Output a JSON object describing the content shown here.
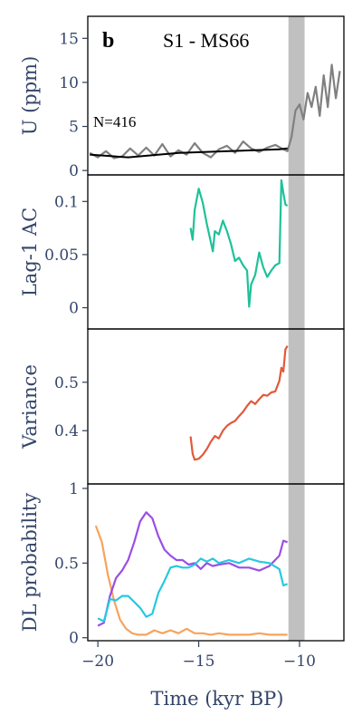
{
  "figure": {
    "panel_letter": "b",
    "title": "S1 - MS66",
    "n_label": "N=416",
    "xlabel": "Time (kyr BP)",
    "xlim": [
      -20.5,
      -7.8
    ],
    "xticks": [
      -20,
      -15,
      -10
    ],
    "xtick_labels": [
      "−20",
      "−15",
      "−10"
    ],
    "shaded_band": {
      "x0": -10.55,
      "x1": -9.75,
      "color": "#c0c0c0"
    }
  },
  "chart_data": [
    {
      "type": "line",
      "panel": "U",
      "ylabel": "U (ppm)",
      "ylim": [
        -0.5,
        17.5
      ],
      "yticks": [
        0,
        5,
        10,
        15
      ],
      "ytick_labels": [
        "0",
        "5",
        "10",
        "15"
      ],
      "series": [
        {
          "role": "data",
          "color": "#808080",
          "x": [
            -20.4,
            -20.0,
            -19.6,
            -19.2,
            -18.8,
            -18.4,
            -18.0,
            -17.6,
            -17.2,
            -16.8,
            -16.4,
            -16.0,
            -15.6,
            -15.2,
            -14.8,
            -14.4,
            -14.0,
            -13.6,
            -13.2,
            -12.8,
            -12.4,
            -12.0,
            -11.6,
            -11.2,
            -10.8,
            -10.6,
            -10.4,
            -10.2,
            -10.0,
            -9.8,
            -9.6,
            -9.4,
            -9.2,
            -9.0,
            -8.8,
            -8.6,
            -8.4,
            -8.2,
            -8.0
          ],
          "y": [
            2.0,
            1.5,
            2.2,
            1.4,
            1.6,
            2.5,
            1.7,
            2.6,
            1.7,
            3.0,
            1.6,
            2.3,
            1.8,
            3.1,
            2.0,
            1.5,
            2.4,
            2.8,
            2.0,
            3.3,
            2.5,
            2.1,
            2.6,
            2.9,
            2.4,
            2.2,
            3.8,
            6.8,
            7.5,
            5.8,
            8.8,
            7.2,
            9.5,
            6.2,
            10.8,
            7.2,
            12.0,
            8.2,
            11.3
          ]
        },
        {
          "role": "trend",
          "color": "#000000",
          "x": [
            -20.4,
            -18.5,
            -16.0,
            -13.5,
            -11.0,
            -10.6
          ],
          "y": [
            1.8,
            1.5,
            2.0,
            2.2,
            2.4,
            2.5
          ]
        }
      ]
    },
    {
      "type": "line",
      "panel": "AC",
      "ylabel": "Lag-1 AC",
      "ylim": [
        -0.02,
        0.125
      ],
      "yticks": [
        0,
        0.05,
        0.1
      ],
      "ytick_labels": [
        "0",
        "0.05",
        "0.1"
      ],
      "series": [
        {
          "color": "#1fc19a",
          "x": [
            -15.4,
            -15.3,
            -15.2,
            -15.0,
            -14.8,
            -14.6,
            -14.4,
            -14.3,
            -14.2,
            -14.0,
            -13.8,
            -13.6,
            -13.4,
            -13.2,
            -13.0,
            -12.8,
            -12.6,
            -12.5,
            -12.4,
            -12.2,
            -12.0,
            -11.8,
            -11.6,
            -11.4,
            -11.2,
            -11.0,
            -10.9,
            -10.8,
            -10.7,
            -10.6
          ],
          "y": [
            0.075,
            0.064,
            0.092,
            0.112,
            0.099,
            0.079,
            0.062,
            0.053,
            0.072,
            0.069,
            0.082,
            0.072,
            0.06,
            0.044,
            0.047,
            0.04,
            0.035,
            0.001,
            0.022,
            0.031,
            0.052,
            0.038,
            0.029,
            0.035,
            0.04,
            0.042,
            0.12,
            0.108,
            0.097,
            0.096
          ]
        }
      ]
    },
    {
      "type": "line",
      "panel": "Variance",
      "ylabel": "Variance",
      "ylim": [
        0.29,
        0.61
      ],
      "yticks": [
        0.4,
        0.5
      ],
      "ytick_labels": [
        "0.4",
        "0.5"
      ],
      "series": [
        {
          "color": "#e2593a",
          "x": [
            -15.4,
            -15.3,
            -15.2,
            -15.0,
            -14.8,
            -14.6,
            -14.4,
            -14.2,
            -14.0,
            -13.8,
            -13.6,
            -13.4,
            -13.2,
            -13.0,
            -12.8,
            -12.6,
            -12.4,
            -12.2,
            -12.0,
            -11.8,
            -11.6,
            -11.4,
            -11.2,
            -11.0,
            -10.9,
            -10.8,
            -10.7,
            -10.6
          ],
          "y": [
            0.388,
            0.352,
            0.34,
            0.342,
            0.35,
            0.362,
            0.377,
            0.389,
            0.384,
            0.4,
            0.41,
            0.416,
            0.42,
            0.43,
            0.439,
            0.451,
            0.461,
            0.455,
            0.465,
            0.474,
            0.472,
            0.479,
            0.481,
            0.503,
            0.53,
            0.522,
            0.568,
            0.575
          ]
        }
      ]
    },
    {
      "type": "line",
      "panel": "DL",
      "ylabel": "DL probability",
      "ylim": [
        -0.02,
        1.03
      ],
      "yticks": [
        0,
        0.5,
        1
      ],
      "ytick_labels": [
        "0",
        "0.5",
        "1"
      ],
      "series": [
        {
          "color": "#f7a35c",
          "x": [
            -20.1,
            -19.8,
            -19.5,
            -19.2,
            -18.9,
            -18.6,
            -18.3,
            -18.0,
            -17.6,
            -17.2,
            -16.8,
            -16.4,
            -16.0,
            -15.6,
            -15.2,
            -14.8,
            -14.4,
            -14.0,
            -13.5,
            -13.0,
            -12.5,
            -12.0,
            -11.5,
            -11.0,
            -10.6
          ],
          "y": [
            0.75,
            0.64,
            0.42,
            0.25,
            0.12,
            0.06,
            0.03,
            0.02,
            0.02,
            0.05,
            0.03,
            0.05,
            0.03,
            0.06,
            0.03,
            0.03,
            0.02,
            0.03,
            0.02,
            0.02,
            0.02,
            0.03,
            0.02,
            0.02,
            0.02
          ]
        },
        {
          "color": "#9a4ee6",
          "x": [
            -20.0,
            -19.7,
            -19.4,
            -19.1,
            -18.8,
            -18.5,
            -18.2,
            -17.9,
            -17.6,
            -17.3,
            -17.0,
            -16.7,
            -16.4,
            -16.1,
            -15.8,
            -15.5,
            -15.2,
            -14.9,
            -14.6,
            -14.3,
            -14.0,
            -13.5,
            -13.0,
            -12.5,
            -12.0,
            -11.5,
            -11.0,
            -10.8,
            -10.6
          ],
          "y": [
            0.08,
            0.1,
            0.28,
            0.4,
            0.45,
            0.52,
            0.64,
            0.78,
            0.84,
            0.8,
            0.68,
            0.59,
            0.55,
            0.52,
            0.52,
            0.49,
            0.5,
            0.46,
            0.5,
            0.48,
            0.49,
            0.5,
            0.47,
            0.47,
            0.45,
            0.48,
            0.55,
            0.65,
            0.64
          ]
        },
        {
          "color": "#27c8e0",
          "x": [
            -20.0,
            -19.7,
            -19.4,
            -19.1,
            -18.8,
            -18.5,
            -18.2,
            -17.9,
            -17.6,
            -17.3,
            -17.0,
            -16.7,
            -16.4,
            -16.1,
            -15.8,
            -15.5,
            -15.2,
            -14.9,
            -14.6,
            -14.3,
            -14.0,
            -13.5,
            -13.0,
            -12.5,
            -12.0,
            -11.5,
            -11.0,
            -10.8,
            -10.6
          ],
          "y": [
            0.13,
            0.11,
            0.26,
            0.25,
            0.28,
            0.28,
            0.24,
            0.2,
            0.14,
            0.16,
            0.3,
            0.38,
            0.47,
            0.48,
            0.47,
            0.47,
            0.49,
            0.53,
            0.51,
            0.53,
            0.5,
            0.52,
            0.5,
            0.53,
            0.51,
            0.5,
            0.46,
            0.35,
            0.36
          ]
        }
      ]
    }
  ]
}
